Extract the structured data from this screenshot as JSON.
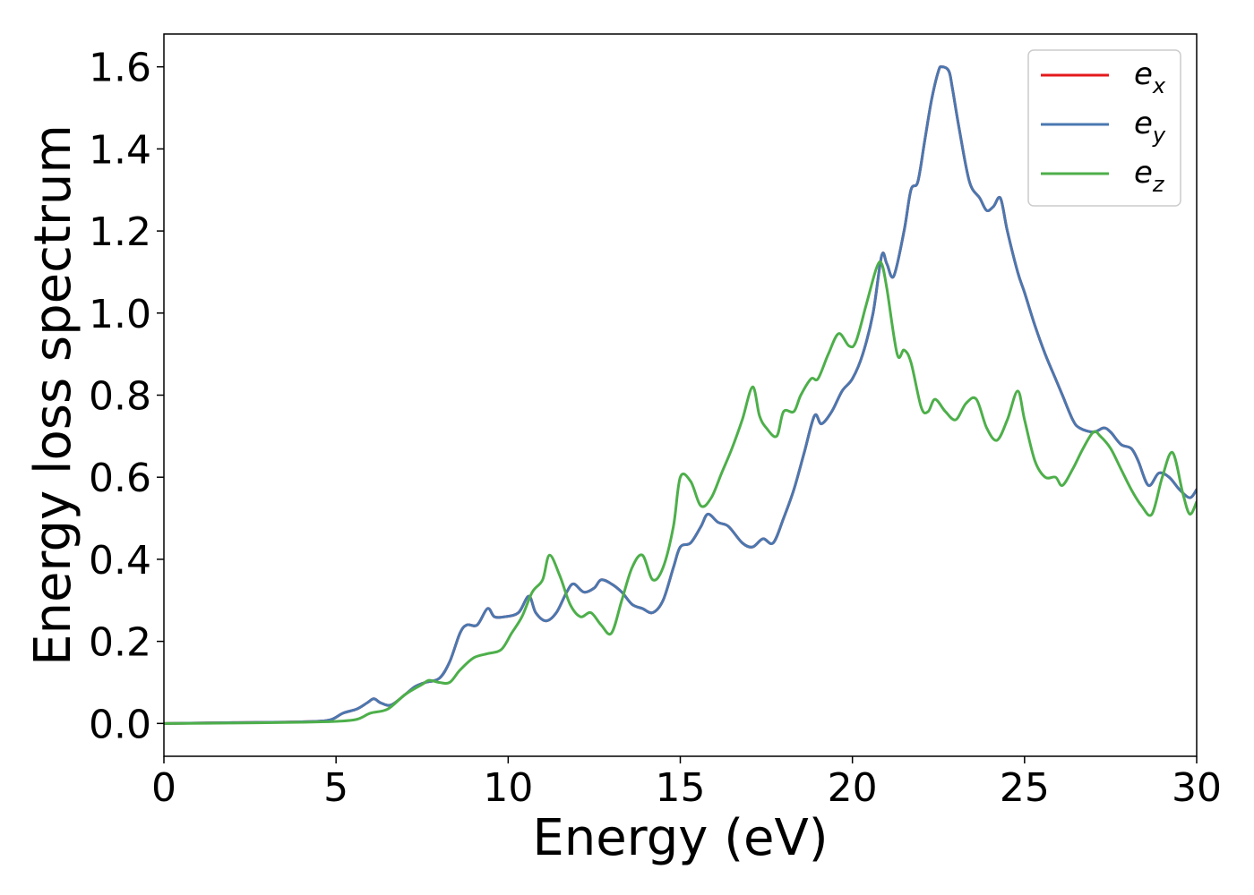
{
  "chart_data": {
    "type": "line",
    "title": "",
    "xlabel": "Energy (eV)",
    "ylabel": "Energy loss spectrum",
    "xlim": [
      0,
      30
    ],
    "ylim": [
      -0.08,
      1.68
    ],
    "xticks": [
      0,
      5,
      10,
      15,
      20,
      25,
      30
    ],
    "xtick_labels": [
      "0",
      "5",
      "10",
      "15",
      "20",
      "25",
      "30"
    ],
    "yticks": [
      0.0,
      0.2,
      0.4,
      0.6,
      0.8,
      1.0,
      1.2,
      1.4,
      1.6
    ],
    "ytick_labels": [
      "0.0",
      "0.2",
      "0.4",
      "0.6",
      "0.8",
      "1.0",
      "1.2",
      "1.4",
      "1.6"
    ],
    "grid": false,
    "legend_position": "top-right",
    "series": [
      {
        "name": "e_x",
        "legend_base": "e",
        "legend_sub": "x",
        "color": "#e41a1c",
        "x": [
          0,
          2,
          4,
          4.8,
          5.2,
          5.6,
          5.9,
          6.1,
          6.3,
          6.6,
          7.0,
          7.3,
          7.6,
          8.0,
          8.3,
          8.6,
          8.8,
          9.1,
          9.4,
          9.6,
          9.9,
          10.3,
          10.6,
          10.8,
          11.1,
          11.4,
          11.7,
          11.9,
          12.2,
          12.5,
          12.7,
          13.0,
          13.3,
          13.6,
          13.9,
          14.2,
          14.5,
          14.8,
          15.0,
          15.3,
          15.6,
          15.8,
          16.1,
          16.4,
          16.8,
          17.1,
          17.4,
          17.7,
          18.0,
          18.3,
          18.6,
          18.9,
          19.1,
          19.4,
          19.7,
          20.0,
          20.3,
          20.6,
          20.85,
          21.0,
          21.2,
          21.5,
          21.7,
          21.9,
          22.1,
          22.3,
          22.5,
          22.6,
          22.8,
          22.9,
          23.1,
          23.4,
          23.7,
          23.9,
          24.1,
          24.3,
          24.5,
          24.8,
          25.0,
          25.3,
          25.6,
          25.9,
          26.1,
          26.4,
          26.6,
          27.0,
          27.3,
          27.5,
          27.8,
          28.1,
          28.3,
          28.6,
          28.9,
          29.2,
          29.5,
          29.8,
          30.0
        ],
        "y": [
          0.0,
          0.002,
          0.004,
          0.008,
          0.025,
          0.035,
          0.05,
          0.06,
          0.05,
          0.045,
          0.07,
          0.09,
          0.1,
          0.11,
          0.15,
          0.22,
          0.24,
          0.24,
          0.28,
          0.26,
          0.26,
          0.27,
          0.31,
          0.27,
          0.25,
          0.27,
          0.32,
          0.34,
          0.32,
          0.33,
          0.35,
          0.34,
          0.32,
          0.29,
          0.28,
          0.27,
          0.3,
          0.38,
          0.43,
          0.44,
          0.48,
          0.51,
          0.49,
          0.48,
          0.44,
          0.43,
          0.45,
          0.44,
          0.5,
          0.57,
          0.66,
          0.75,
          0.73,
          0.76,
          0.81,
          0.84,
          0.9,
          1.0,
          1.14,
          1.12,
          1.09,
          1.2,
          1.3,
          1.32,
          1.42,
          1.52,
          1.59,
          1.6,
          1.59,
          1.55,
          1.45,
          1.32,
          1.28,
          1.25,
          1.26,
          1.28,
          1.2,
          1.1,
          1.05,
          0.97,
          0.9,
          0.84,
          0.8,
          0.74,
          0.72,
          0.71,
          0.72,
          0.71,
          0.68,
          0.67,
          0.64,
          0.58,
          0.61,
          0.6,
          0.57,
          0.55,
          0.57
        ]
      },
      {
        "name": "e_y",
        "legend_base": "e",
        "legend_sub": "y",
        "color": "#4a78b0",
        "x": [
          0,
          2,
          4,
          4.8,
          5.2,
          5.6,
          5.9,
          6.1,
          6.3,
          6.6,
          7.0,
          7.3,
          7.6,
          8.0,
          8.3,
          8.6,
          8.8,
          9.1,
          9.4,
          9.6,
          9.9,
          10.3,
          10.6,
          10.8,
          11.1,
          11.4,
          11.7,
          11.9,
          12.2,
          12.5,
          12.7,
          13.0,
          13.3,
          13.6,
          13.9,
          14.2,
          14.5,
          14.8,
          15.0,
          15.3,
          15.6,
          15.8,
          16.1,
          16.4,
          16.8,
          17.1,
          17.4,
          17.7,
          18.0,
          18.3,
          18.6,
          18.9,
          19.1,
          19.4,
          19.7,
          20.0,
          20.3,
          20.6,
          20.85,
          21.0,
          21.2,
          21.5,
          21.7,
          21.9,
          22.1,
          22.3,
          22.5,
          22.6,
          22.8,
          22.9,
          23.1,
          23.4,
          23.7,
          23.9,
          24.1,
          24.3,
          24.5,
          24.8,
          25.0,
          25.3,
          25.6,
          25.9,
          26.1,
          26.4,
          26.6,
          27.0,
          27.3,
          27.5,
          27.8,
          28.1,
          28.3,
          28.6,
          28.9,
          29.2,
          29.5,
          29.8,
          30.0
        ],
        "y": [
          0.0,
          0.002,
          0.004,
          0.008,
          0.025,
          0.035,
          0.05,
          0.06,
          0.05,
          0.045,
          0.07,
          0.09,
          0.1,
          0.11,
          0.15,
          0.22,
          0.24,
          0.24,
          0.28,
          0.26,
          0.26,
          0.27,
          0.31,
          0.27,
          0.25,
          0.27,
          0.32,
          0.34,
          0.32,
          0.33,
          0.35,
          0.34,
          0.32,
          0.29,
          0.28,
          0.27,
          0.3,
          0.38,
          0.43,
          0.44,
          0.48,
          0.51,
          0.49,
          0.48,
          0.44,
          0.43,
          0.45,
          0.44,
          0.5,
          0.57,
          0.66,
          0.75,
          0.73,
          0.76,
          0.81,
          0.84,
          0.9,
          1.0,
          1.14,
          1.12,
          1.09,
          1.2,
          1.3,
          1.32,
          1.42,
          1.52,
          1.59,
          1.6,
          1.59,
          1.55,
          1.45,
          1.32,
          1.28,
          1.25,
          1.26,
          1.28,
          1.2,
          1.1,
          1.05,
          0.97,
          0.9,
          0.84,
          0.8,
          0.74,
          0.72,
          0.71,
          0.72,
          0.71,
          0.68,
          0.67,
          0.64,
          0.58,
          0.61,
          0.6,
          0.57,
          0.55,
          0.57
        ]
      },
      {
        "name": "e_z",
        "legend_base": "e",
        "legend_sub": "z",
        "color": "#4daf4a",
        "x": [
          0,
          2,
          4,
          5.0,
          5.6,
          6.0,
          6.5,
          7.0,
          7.5,
          7.7,
          8.0,
          8.3,
          8.6,
          9.0,
          9.4,
          9.8,
          10.1,
          10.4,
          10.7,
          11.0,
          11.2,
          11.5,
          11.8,
          12.1,
          12.4,
          12.7,
          13.0,
          13.3,
          13.6,
          13.9,
          14.2,
          14.5,
          14.8,
          15.0,
          15.3,
          15.6,
          15.9,
          16.2,
          16.5,
          16.8,
          17.1,
          17.3,
          17.5,
          17.8,
          18.0,
          18.3,
          18.5,
          18.8,
          19.0,
          19.3,
          19.6,
          19.9,
          20.1,
          20.4,
          20.7,
          20.85,
          21.0,
          21.3,
          21.5,
          21.7,
          22.0,
          22.2,
          22.4,
          22.7,
          23.0,
          23.3,
          23.6,
          23.9,
          24.2,
          24.5,
          24.8,
          25.0,
          25.3,
          25.6,
          25.9,
          26.1,
          26.4,
          26.7,
          27.0,
          27.2,
          27.5,
          27.8,
          28.1,
          28.4,
          28.7,
          29.0,
          29.3,
          29.6,
          29.8,
          30.0
        ],
        "y": [
          0.0,
          0.001,
          0.003,
          0.005,
          0.01,
          0.025,
          0.035,
          0.07,
          0.095,
          0.105,
          0.1,
          0.1,
          0.13,
          0.16,
          0.17,
          0.18,
          0.22,
          0.26,
          0.32,
          0.35,
          0.41,
          0.36,
          0.29,
          0.26,
          0.27,
          0.24,
          0.22,
          0.3,
          0.38,
          0.41,
          0.35,
          0.38,
          0.48,
          0.6,
          0.59,
          0.53,
          0.55,
          0.61,
          0.67,
          0.74,
          0.82,
          0.75,
          0.72,
          0.7,
          0.76,
          0.76,
          0.8,
          0.84,
          0.84,
          0.9,
          0.95,
          0.92,
          0.93,
          1.02,
          1.11,
          1.12,
          1.06,
          0.9,
          0.91,
          0.88,
          0.77,
          0.76,
          0.79,
          0.76,
          0.74,
          0.78,
          0.79,
          0.72,
          0.69,
          0.74,
          0.81,
          0.74,
          0.64,
          0.6,
          0.6,
          0.58,
          0.62,
          0.67,
          0.71,
          0.7,
          0.67,
          0.62,
          0.57,
          0.53,
          0.51,
          0.6,
          0.66,
          0.56,
          0.51,
          0.54
        ]
      }
    ]
  }
}
